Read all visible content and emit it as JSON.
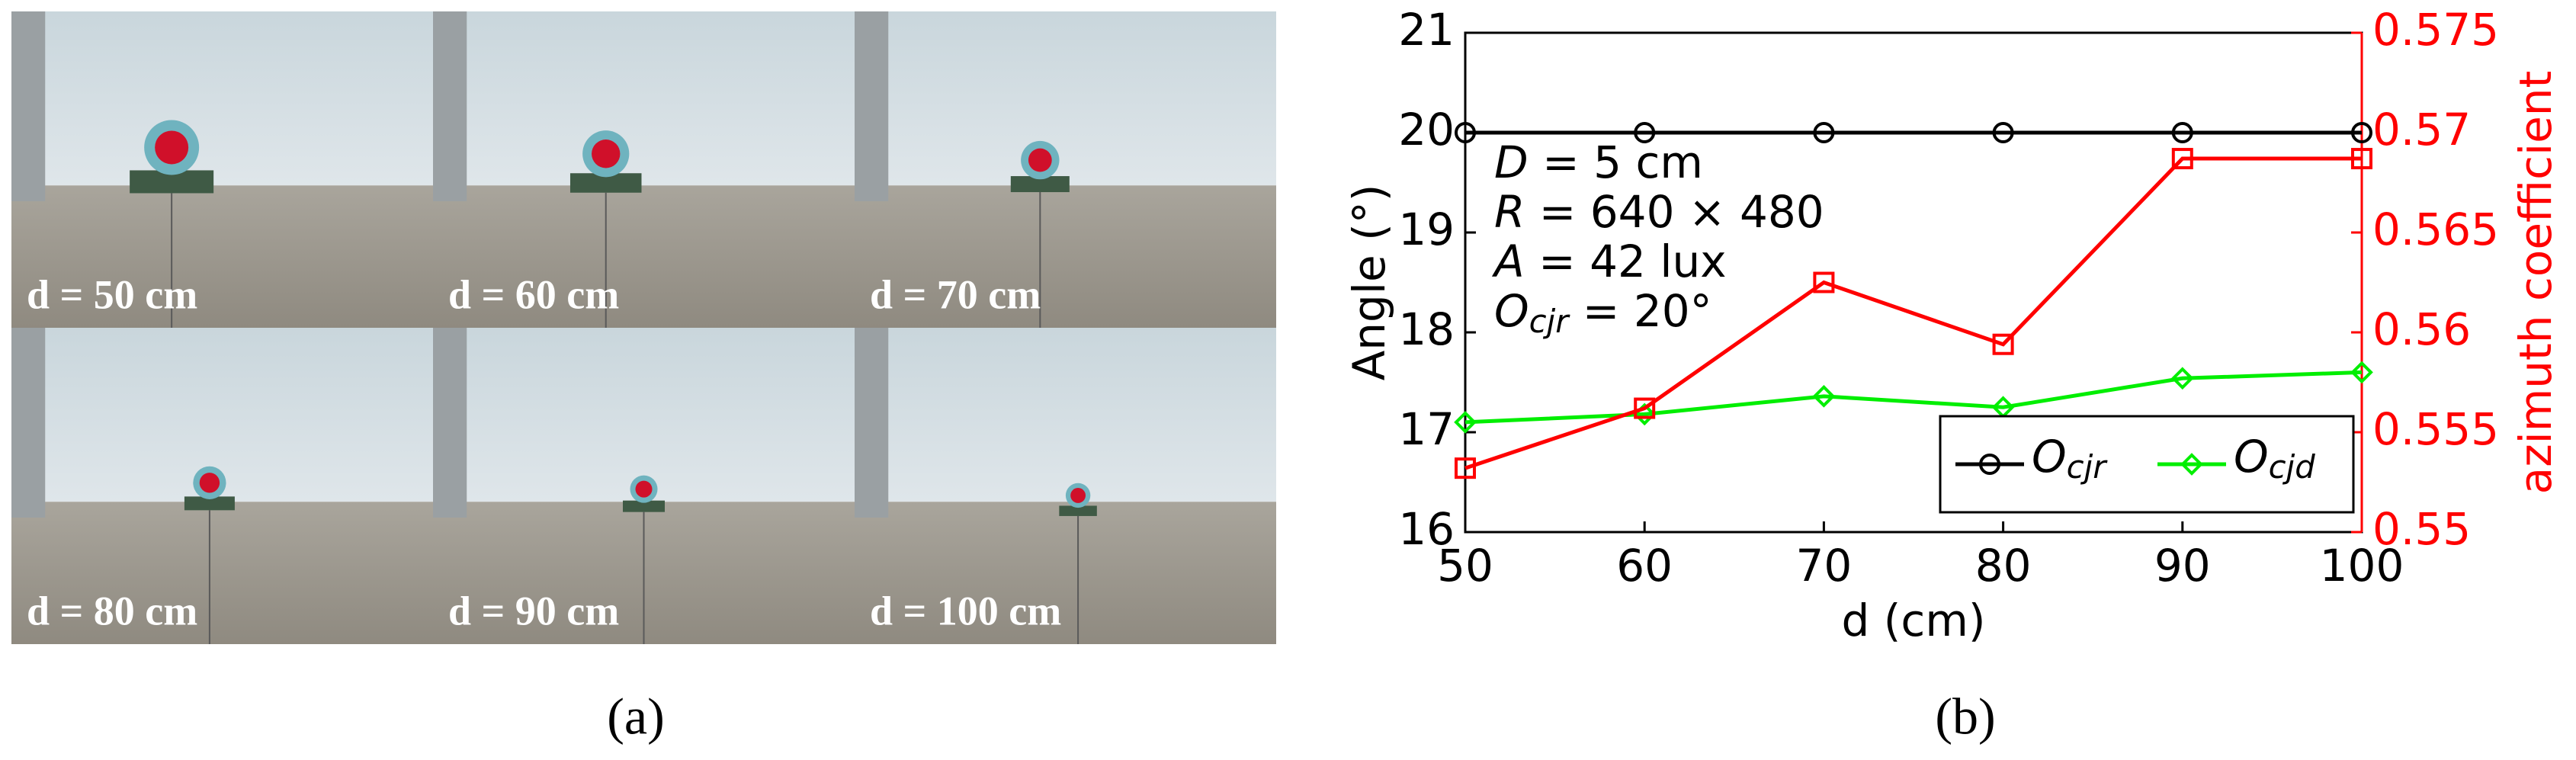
{
  "panel_a": {
    "label": "(a)",
    "photos": [
      "d = 50 cm",
      "d = 60 cm",
      "d = 70 cm",
      "d = 80 cm",
      "d = 90 cm",
      "d = 100 cm"
    ]
  },
  "chart_data": {
    "type": "line",
    "panel_label": "(b)",
    "xlabel": "d (cm)",
    "ylabel": "Angle (°)",
    "y2label": "azimuth coefficient",
    "x": [
      50,
      60,
      70,
      80,
      90,
      100
    ],
    "xlim": [
      50,
      100
    ],
    "xticks": [
      50,
      60,
      70,
      80,
      90,
      100
    ],
    "ylim": [
      16,
      21
    ],
    "yticks": [
      16,
      17,
      18,
      19,
      20,
      21
    ],
    "y2lim": [
      0.55,
      0.575
    ],
    "y2ticks": [
      0.55,
      0.555,
      0.56,
      0.565,
      0.57,
      0.575
    ],
    "annotations": [
      "D = 5 cm",
      "R = 640 × 480",
      "A = 42 lux",
      "Ocjr = 20°"
    ],
    "legend": "lower right",
    "series": [
      {
        "name": "Ocjr",
        "color": "#000000",
        "marker": "circle",
        "values": [
          20,
          20,
          20,
          20,
          20,
          20
        ]
      },
      {
        "name": "Ocjd",
        "color": "#00ee00",
        "marker": "diamond",
        "values": [
          17.1,
          17.18,
          17.36,
          17.25,
          17.54,
          17.6
        ]
      },
      {
        "color": "#ff0000",
        "marker": "square",
        "axis": "y2",
        "values": [
          0.5532,
          0.5562,
          0.5625,
          0.5594,
          0.5687,
          0.5687
        ]
      }
    ]
  }
}
